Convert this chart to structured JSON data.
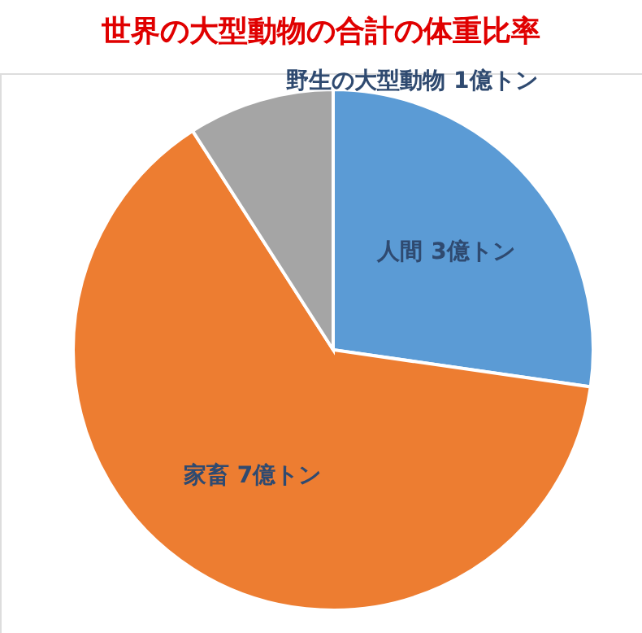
{
  "chart_data": {
    "type": "pie",
    "title": "世界の大型動物の合計の体重比率",
    "categories": [
      "人間",
      "家畜",
      "野生の大型動物"
    ],
    "values": [
      3,
      7,
      1
    ],
    "value_labels": [
      "3億トン",
      "7億トン",
      "1億トン"
    ],
    "colors": [
      "#5b9bd5",
      "#ed7d31",
      "#a5a5a5"
    ]
  }
}
